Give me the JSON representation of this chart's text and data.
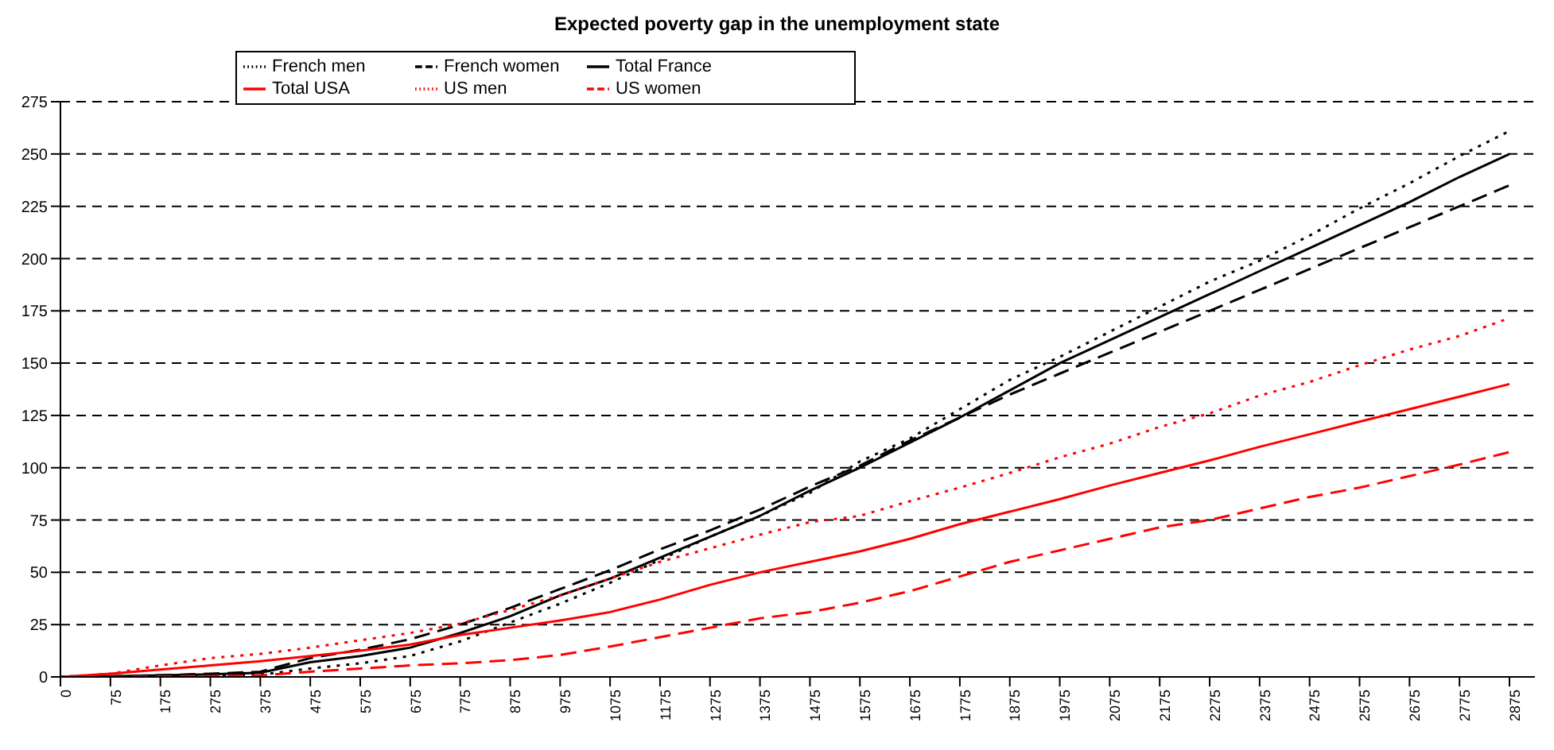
{
  "chart_data": {
    "type": "line",
    "title": "Expected poverty gap in the unemployment state",
    "categories": [
      "0",
      "75",
      "175",
      "275",
      "375",
      "475",
      "575",
      "675",
      "775",
      "875",
      "975",
      "1075",
      "1175",
      "1275",
      "1375",
      "1475",
      "1575",
      "1675",
      "1775",
      "1875",
      "1975",
      "2075",
      "2175",
      "2275",
      "2375",
      "2475",
      "2575",
      "2675",
      "2775",
      "2875"
    ],
    "series": [
      {
        "name": "Total France",
        "color": "#000000",
        "line_style": "solid",
        "values": [
          0,
          0.3,
          0.8,
          1.2,
          2,
          7,
          10,
          14,
          21,
          29,
          39,
          47,
          57,
          67,
          77,
          89,
          100,
          112,
          124,
          137,
          150,
          161,
          172,
          183,
          194,
          205,
          216,
          227,
          239,
          250
        ]
      },
      {
        "name": "French women",
        "color": "#000000",
        "line_style": "dashed",
        "values": [
          0,
          0.3,
          0.8,
          1.5,
          2.5,
          9,
          13,
          18,
          25,
          33,
          42,
          51,
          61,
          70,
          80,
          91,
          101,
          113,
          124,
          135,
          145,
          155,
          165,
          175,
          185,
          195,
          205,
          215,
          225,
          235
        ]
      },
      {
        "name": "French men",
        "color": "#000000",
        "line_style": "dotted",
        "values": [
          0,
          0.2,
          0.5,
          0.8,
          1,
          4,
          6.5,
          10,
          17,
          26,
          35,
          45,
          56,
          67,
          77,
          88,
          103,
          114,
          128,
          142,
          153,
          165,
          177,
          189,
          199,
          211,
          224,
          236,
          249,
          261
        ]
      },
      {
        "name": "Total USA",
        "color": "#ff0000",
        "line_style": "solid",
        "values": [
          0,
          1.5,
          3.5,
          5.5,
          7.5,
          10,
          12.5,
          15.5,
          20,
          23.5,
          27,
          31,
          37,
          44,
          50,
          55,
          60,
          66,
          73,
          79,
          85,
          91.5,
          97.5,
          103.5,
          110,
          116,
          122,
          128,
          134,
          140
        ]
      },
      {
        "name": "US women",
        "color": "#ff0000",
        "line_style": "dashed",
        "values": [
          0,
          0,
          0.2,
          0.4,
          0.7,
          2.5,
          4,
          5.5,
          6.5,
          8,
          10.5,
          14.5,
          19,
          23.5,
          28,
          31,
          35.5,
          41,
          48,
          55,
          60.5,
          66,
          71.5,
          75,
          80.5,
          86,
          90.5,
          96,
          101.5,
          107.5
        ]
      },
      {
        "name": "US men",
        "color": "#ff0000",
        "line_style": "dotted",
        "values": [
          0,
          1.5,
          5.5,
          9,
          11,
          14,
          17.5,
          21,
          25.5,
          32,
          39,
          47,
          55,
          61.5,
          68,
          74,
          77,
          84,
          90.5,
          97.5,
          105,
          111.5,
          119.5,
          126,
          134.5,
          141,
          149,
          156.5,
          163,
          171.5
        ]
      }
    ],
    "ylim": [
      0,
      275
    ],
    "yticks": [
      0,
      25,
      50,
      75,
      100,
      125,
      150,
      175,
      200,
      225,
      250,
      275
    ],
    "grid": "y",
    "legend": "top left",
    "marker": "none"
  }
}
